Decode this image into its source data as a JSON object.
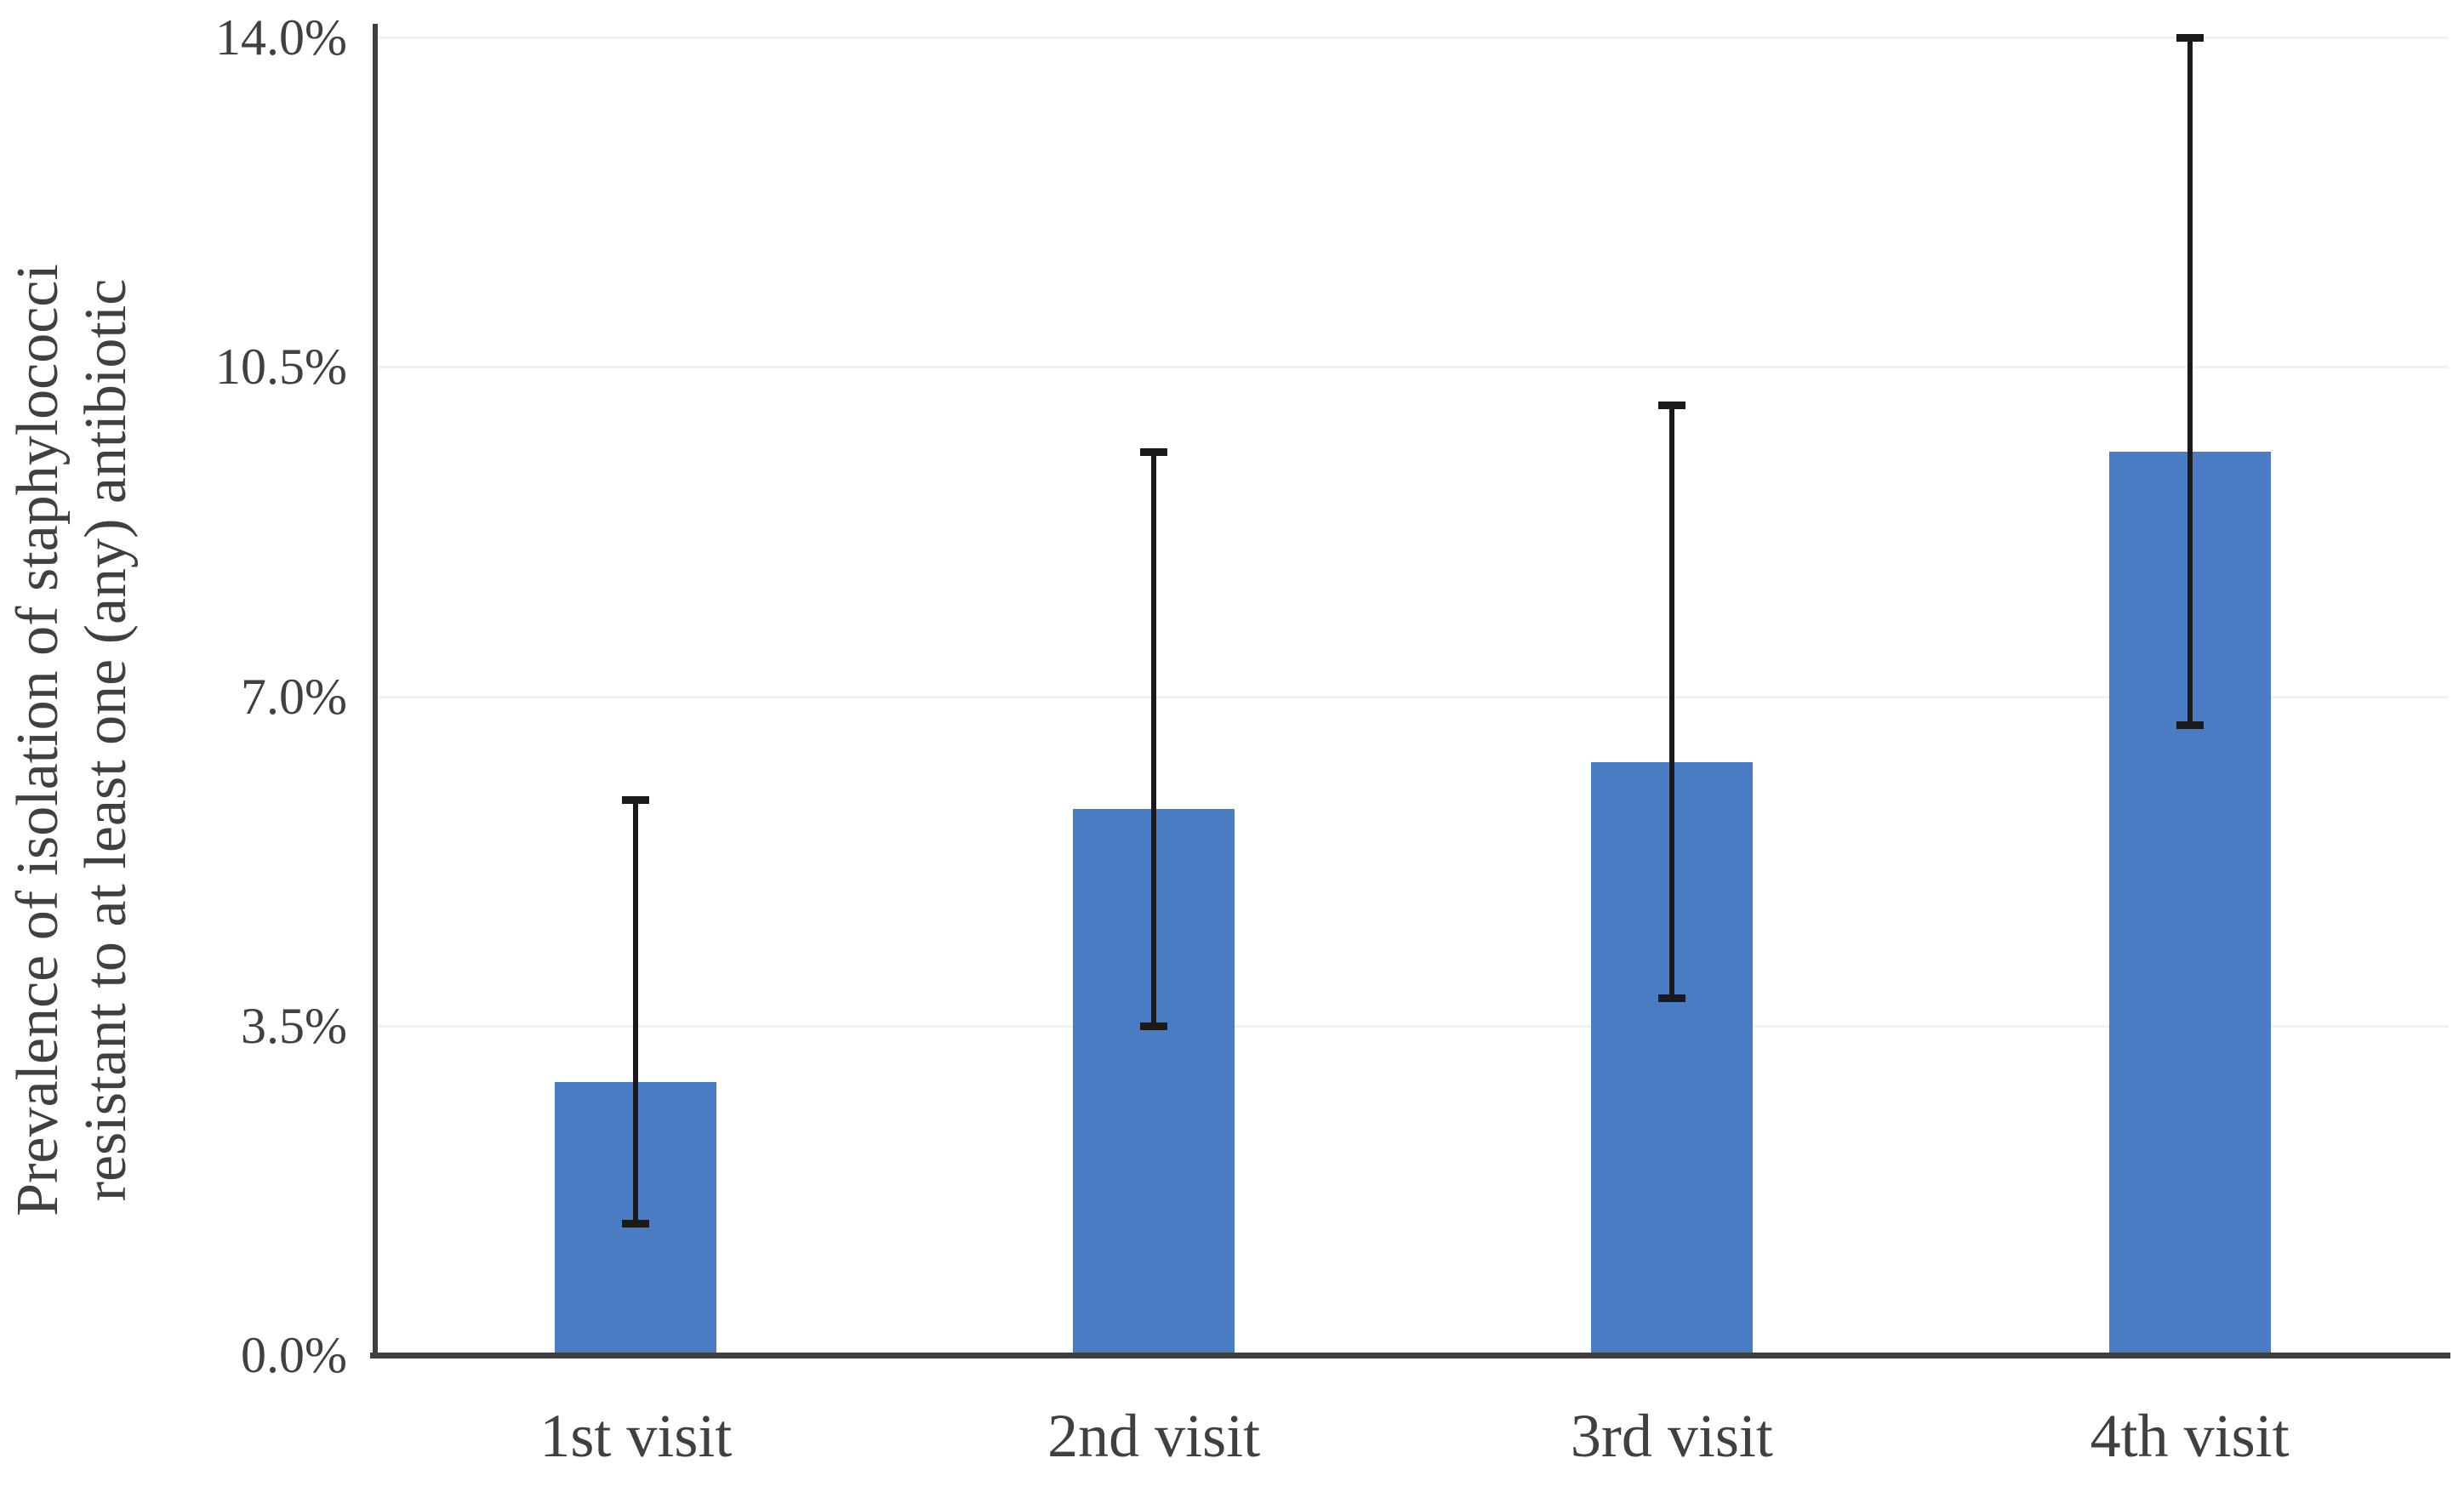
{
  "chart_data": {
    "type": "bar",
    "title": "",
    "xlabel": "",
    "ylabel_lines": [
      "Prevalence of isolation of staphylococci",
      "resistant to at least one (any) antibiotic"
    ],
    "categories": [
      "1st visit",
      "2nd visit",
      "3rd visit",
      "4th visit"
    ],
    "values": [
      2.9,
      5.8,
      6.3,
      9.6
    ],
    "error_bars": {
      "low": [
        1.4,
        3.5,
        3.8,
        6.7
      ],
      "high": [
        5.9,
        9.6,
        10.1,
        14.0
      ]
    },
    "ylim": [
      0,
      14
    ],
    "yticks": [
      {
        "value": 0.0,
        "label": "0.0%"
      },
      {
        "value": 3.5,
        "label": "3.5%"
      },
      {
        "value": 7.0,
        "label": "7.0%"
      },
      {
        "value": 10.5,
        "label": "10.5%"
      },
      {
        "value": 14.0,
        "label": "14.0%"
      }
    ],
    "grid": true,
    "legend": false,
    "colors": {
      "bar": "#4A7CC4",
      "error": "#1a1a1a",
      "axis": "#3f3f3f",
      "grid": "#f0f0f0",
      "text": "#404040",
      "background": "#ffffff"
    }
  }
}
